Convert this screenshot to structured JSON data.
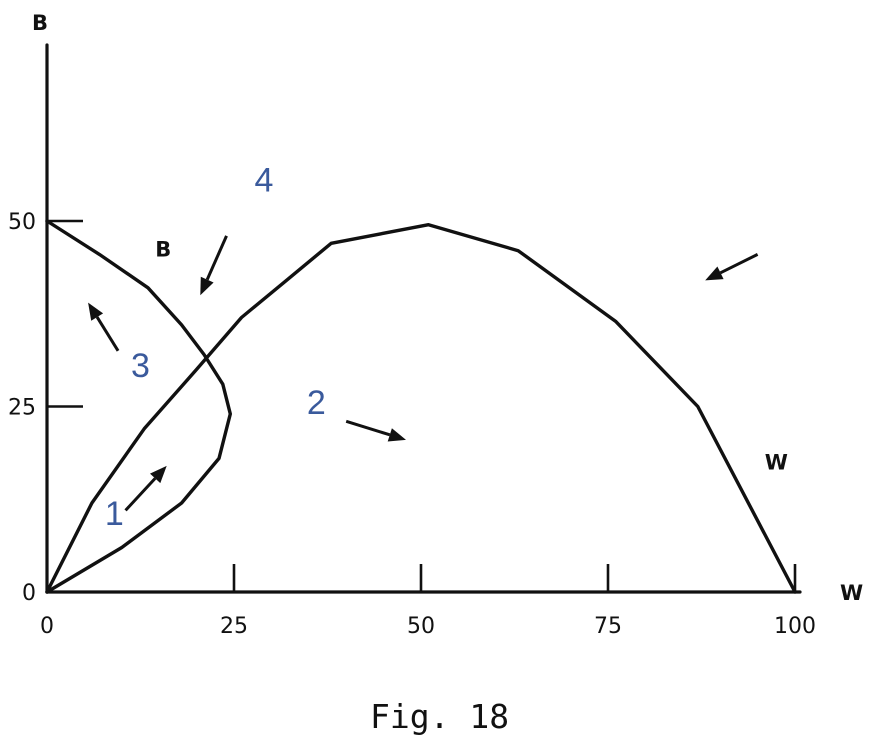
{
  "chart_data": {
    "type": "line",
    "title": "",
    "caption": "Fig. 18",
    "xlabel": "W",
    "ylabel": "B",
    "xlim": [
      0,
      100
    ],
    "ylim": [
      0,
      70
    ],
    "x_ticks": [
      0,
      25,
      50,
      75,
      100
    ],
    "y_ticks": [
      0,
      25,
      50
    ],
    "grid": false,
    "series": [
      {
        "name": "B",
        "points": [
          [
            0,
            0
          ],
          [
            10,
            6
          ],
          [
            18,
            12
          ],
          [
            23,
            18
          ],
          [
            24.5,
            24
          ],
          [
            23.5,
            28
          ],
          [
            21,
            32
          ],
          [
            18,
            36
          ],
          [
            13.5,
            41
          ],
          [
            7,
            45.5
          ],
          [
            0,
            50
          ]
        ]
      },
      {
        "name": "W",
        "points": [
          [
            0,
            0
          ],
          [
            6,
            12
          ],
          [
            13,
            22
          ],
          [
            20,
            30
          ],
          [
            26,
            37
          ],
          [
            32,
            42
          ],
          [
            38,
            47
          ],
          [
            51,
            49.5
          ],
          [
            63,
            46
          ],
          [
            76,
            36.5
          ],
          [
            87,
            25
          ],
          [
            100,
            0
          ]
        ]
      }
    ],
    "regions": [
      {
        "label": "1",
        "pos": [
          9,
          9
        ]
      },
      {
        "label": "2",
        "pos": [
          36,
          24
        ]
      },
      {
        "label": "3",
        "pos": [
          12.5,
          29
        ]
      },
      {
        "label": "4",
        "pos": [
          29,
          54
        ]
      }
    ],
    "arrows": [
      {
        "from": [
          10.5,
          11
        ],
        "to": [
          16,
          17
        ]
      },
      {
        "from": [
          40,
          23
        ],
        "to": [
          48,
          20.5
        ]
      },
      {
        "from": [
          9.5,
          32.5
        ],
        "to": [
          5.5,
          39
        ]
      },
      {
        "from": [
          24,
          48
        ],
        "to": [
          20.5,
          40
        ]
      },
      {
        "from": [
          95,
          45.5
        ],
        "to": [
          88,
          42
        ]
      }
    ]
  }
}
